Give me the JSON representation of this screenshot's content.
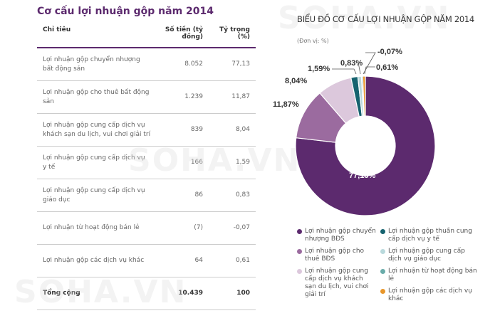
{
  "table": {
    "title": "Cơ cấu lợi nhuận gộp năm 2014",
    "headers": [
      "Chỉ tiêu",
      "Số tiền (tỷ đồng)",
      "Tỷ trọng (%)"
    ],
    "rows": [
      [
        "Lợi nhuận gộp chuyển nhượng bất động sản",
        "8.052",
        "77,13"
      ],
      [
        "Lợi nhuận gộp cho thuê bất động sản",
        "1.239",
        "11,87"
      ],
      [
        "Lợi nhuận gộp cung cấp dịch vụ khách sạn du lịch, vui chơi giải trí",
        "839",
        "8,04"
      ],
      [
        "Lợi nhuận gộp cung cấp dịch vụ y tế",
        "166",
        "1,59"
      ],
      [
        "Lợi nhuận gộp cung cấp dịch vụ giáo dục",
        "86",
        "0,83"
      ],
      [
        "Lợi nhuận từ hoạt động bán lẻ",
        "(7)",
        "-0,07"
      ],
      [
        "Lợi nhuận gộp các dịch vụ khác",
        "64",
        "0,61"
      ]
    ],
    "total": [
      "Tổng cộng",
      "10.439",
      "100"
    ]
  },
  "watermark": "SOHA.VN",
  "chart_data": {
    "type": "pie",
    "title": "BIỂU ĐỒ CƠ CẤU LỢI NHUẬN GỘP NĂM 2014",
    "unit": "(Đơn vị: %)",
    "donut": true,
    "slices": [
      {
        "name": "Lợi nhuận gộp chuyển nhượng BĐS",
        "value": 77.13,
        "label": "77,13%",
        "color": "#5c2a6e"
      },
      {
        "name": "Lợi nhuận gộp cho thuê BĐS",
        "value": 11.87,
        "label": "11,87%",
        "color": "#9b6b9f"
      },
      {
        "name": "Lợi nhuận gộp cung cấp dịch vụ khách sạn du lịch, vui chơi giải trí",
        "value": 8.04,
        "label": "8,04%",
        "color": "#dcc8dc"
      },
      {
        "name": "Lợi nhuận gộp thuần cung cấp dịch vụ y tế",
        "value": 1.59,
        "label": "1,59%",
        "color": "#16636f"
      },
      {
        "name": "Lợi nhuận gộp cung cấp dịch vụ giáo dục",
        "value": 0.83,
        "label": "0,83%",
        "color": "#b9d9dc"
      },
      {
        "name": "Lợi nhuận từ hoạt động bán lẻ",
        "value": -0.07,
        "label": "-0,07%",
        "color": "#6aacaa"
      },
      {
        "name": "Lợi nhuận gộp các dịch vụ khác",
        "value": 0.61,
        "label": "0,61%",
        "color": "#e8962a"
      }
    ],
    "legend": "bottom"
  }
}
